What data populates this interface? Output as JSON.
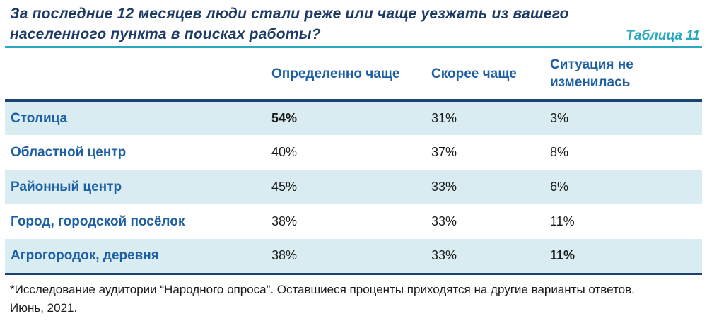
{
  "header": {
    "title": "За последние 12 месяцев люди стали реже или чаще уезжать из вашего населенного пункта в поисках работы?",
    "table_label": "Таблица 11"
  },
  "chart_data": {
    "type": "table",
    "title": "За последние 12 месяцев люди стали реже или чаще уезжать из вашего населенного пункта в поисках работы?",
    "columns": [
      "Определенно чаще",
      "Скорее чаще",
      "Ситуация не изменилась"
    ],
    "rows": [
      {
        "label": "Столица",
        "values": [
          "54%",
          "31%",
          "3%"
        ],
        "bold": [
          true,
          false,
          false
        ],
        "shaded": true
      },
      {
        "label": "Областной центр",
        "values": [
          "40%",
          "37%",
          "8%"
        ],
        "bold": [
          false,
          false,
          false
        ],
        "shaded": false
      },
      {
        "label": "Районный центр",
        "values": [
          "45%",
          "33%",
          "6%"
        ],
        "bold": [
          false,
          false,
          false
        ],
        "shaded": true
      },
      {
        "label": "Город, городской посёлок",
        "values": [
          "38%",
          "33%",
          "11%"
        ],
        "bold": [
          false,
          false,
          false
        ],
        "shaded": false
      },
      {
        "label": "Агрогородок, деревня",
        "values": [
          "38%",
          "33%",
          "11%"
        ],
        "bold": [
          false,
          false,
          true
        ],
        "shaded": true
      }
    ]
  },
  "footnote": {
    "line1": "*Исследование аудитории “Народного опроса”. Оставшиеся проценты приходятся на другие варианты ответов.",
    "line2": "Июнь, 2021."
  },
  "colors": {
    "title_navy": "#1e3a66",
    "label_blue": "#1d5fa5",
    "teal_accent": "#2aa9be",
    "navy_border": "#1a4270",
    "row_shaded_bg": "#d9ecf1",
    "text_black": "#1a1a1a"
  }
}
